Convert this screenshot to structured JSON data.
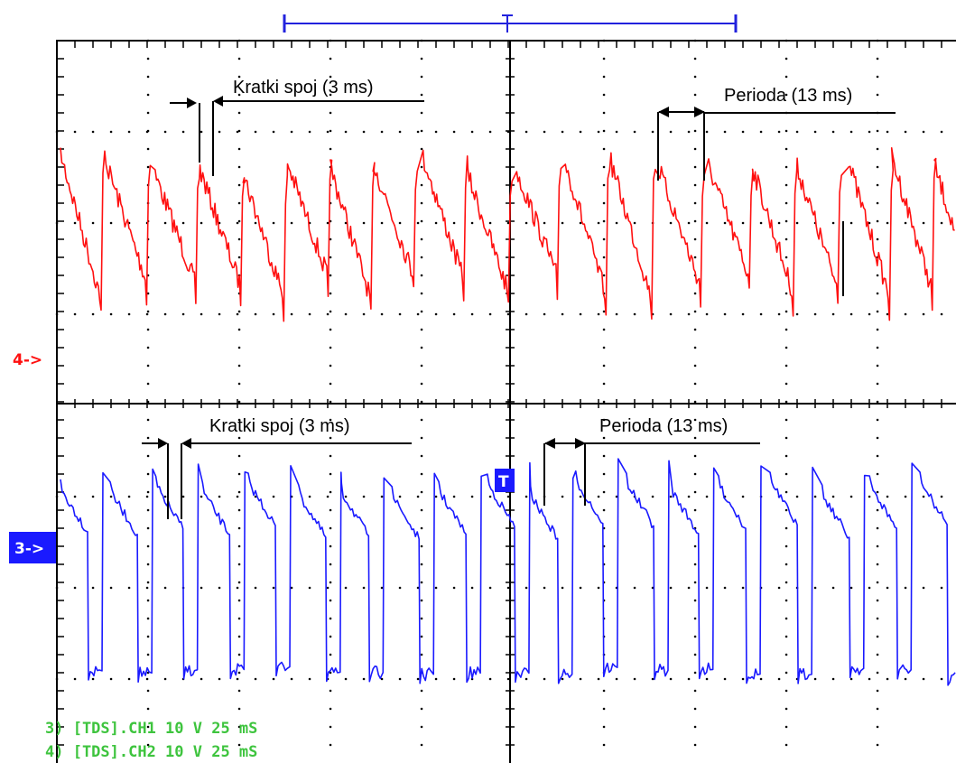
{
  "colors": {
    "background": "#ffffff",
    "frame": "#000000",
    "grid": "#000000",
    "ch4_trace": "#ff1010",
    "ch3_trace": "#1a1aff",
    "ch3_marker_bg": "#1a1aff",
    "trigger_bar": "#2222dd",
    "status_text": "#3ec43e"
  },
  "markers": {
    "ch4": "4->",
    "ch3": "3->",
    "trigger": "T"
  },
  "annotations": {
    "top_short": "Kratki spoj (3 ms)",
    "top_period": "Perioda (13 ms)",
    "bottom_short": "Kratki spoj (3 ms)",
    "bottom_period": "Perioda (13 ms)"
  },
  "status_lines": [
    "3) [TDS].CH1  10 V   25 mS",
    "4) [TDS].CH2  10 V   25 mS"
  ],
  "chart_data": {
    "type": "line",
    "grid": true,
    "time_per_division_ms": 25,
    "volts_per_division": 10,
    "series": [
      {
        "name": "[TDS].CH2",
        "channel_marker": "4->",
        "period_ms": 13,
        "short_ms": 3,
        "color": "#ff1010"
      },
      {
        "name": "[TDS].CH1",
        "channel_marker": "3->",
        "period_ms": 13,
        "short_ms": 3,
        "color": "#1a1aff"
      }
    ]
  }
}
